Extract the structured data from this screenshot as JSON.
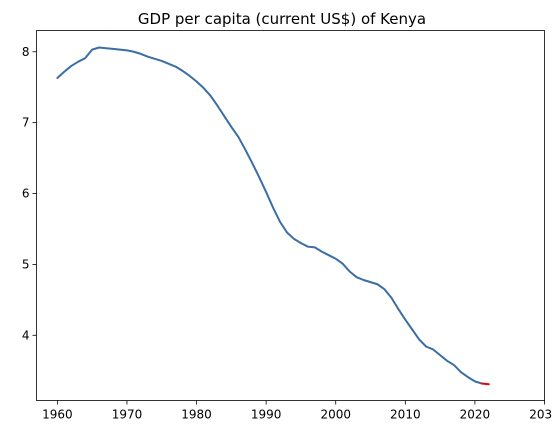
{
  "chart_data": {
    "type": "line",
    "title": "GDP per capita (current US$) of Kenya",
    "xlabel": "",
    "ylabel": "",
    "xlim": [
      1957,
      2030
    ],
    "ylim": [
      3.08,
      8.3
    ],
    "xticks": [
      1960,
      1970,
      1980,
      1990,
      2000,
      2010,
      2020,
      2030
    ],
    "yticks": [
      4,
      5,
      6,
      7,
      8
    ],
    "grid": false,
    "series": [
      {
        "color": "#3a6ea5",
        "x": [
          1960,
          1961,
          1962,
          1963,
          1964,
          1965,
          1966,
          1967,
          1968,
          1969,
          1970,
          1971,
          1972,
          1973,
          1974,
          1975,
          1976,
          1977,
          1978,
          1979,
          1980,
          1981,
          1982,
          1983,
          1984,
          1985,
          1986,
          1987,
          1988,
          1989,
          1990,
          1991,
          1992,
          1993,
          1994,
          1995,
          1996,
          1997,
          1998,
          1999,
          2000,
          2001,
          2002,
          2003,
          2004,
          2005,
          2006,
          2007,
          2008,
          2009,
          2010,
          2011,
          2012,
          2013,
          2014,
          2015,
          2016,
          2017,
          2018,
          2019,
          2020,
          2021
        ],
        "y": [
          7.63,
          7.72,
          7.8,
          7.86,
          7.91,
          8.03,
          8.06,
          8.05,
          8.04,
          8.03,
          8.02,
          8.0,
          7.97,
          7.93,
          7.9,
          7.87,
          7.83,
          7.79,
          7.73,
          7.66,
          7.58,
          7.49,
          7.38,
          7.24,
          7.09,
          6.94,
          6.8,
          6.62,
          6.43,
          6.23,
          6.02,
          5.8,
          5.6,
          5.45,
          5.36,
          5.3,
          5.25,
          5.24,
          5.18,
          5.13,
          5.08,
          5.01,
          4.9,
          4.82,
          4.78,
          4.75,
          4.72,
          4.65,
          4.53,
          4.37,
          4.22,
          4.08,
          3.94,
          3.84,
          3.8,
          3.72,
          3.64,
          3.58,
          3.48,
          3.41,
          3.35,
          3.32
        ]
      },
      {
        "color": "#e8000b",
        "x": [
          2021,
          2022
        ],
        "y": [
          3.32,
          3.31
        ]
      }
    ]
  }
}
